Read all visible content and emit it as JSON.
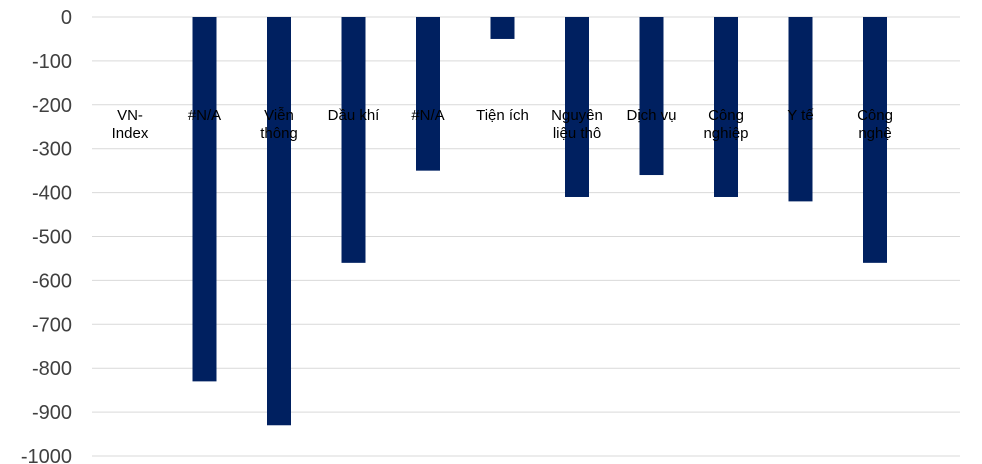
{
  "chart_data": {
    "type": "bar",
    "categories": [
      [
        "VN-",
        "Index"
      ],
      [
        "#N/A"
      ],
      [
        "Viễn",
        "thông"
      ],
      [
        "Dầu khí"
      ],
      [
        "#N/A"
      ],
      [
        "Tiện ích"
      ],
      [
        "Nguyên",
        "liệu thô"
      ],
      [
        "Dịch vụ"
      ],
      [
        "Công",
        "nghiệp"
      ],
      [
        "Y tế"
      ],
      [
        "Công",
        "nghệ"
      ]
    ],
    "values": [
      0,
      -830,
      -930,
      -560,
      -350,
      -50,
      -410,
      -360,
      -410,
      -420,
      -560
    ],
    "ylim": [
      -1000,
      0
    ],
    "yticks": [
      "0",
      "-100",
      "-200",
      "-300",
      "-400",
      "-500",
      "-600",
      "-700",
      "-800",
      "-900",
      "-1000"
    ],
    "grid": true,
    "bar_color": "#002060"
  }
}
